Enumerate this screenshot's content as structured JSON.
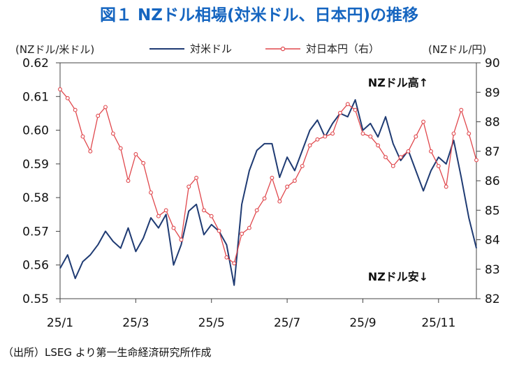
{
  "title": "図１ NZドル相場(対米ドル、日本円)の推移",
  "left_unit": "(NZドル/米ドル)",
  "right_unit": "(NZドル/円)",
  "legend": {
    "usd": "対米ドル",
    "jpy": "対日本円（右）"
  },
  "annotations": {
    "up": "NZドル高↑",
    "down": "NZドル安↓"
  },
  "source": "（出所）LSEG より第一生命経済研究所作成",
  "colors": {
    "usd": "#1f3b73",
    "jpy": "#e0474c",
    "title": "#1565c0"
  },
  "chart_data": {
    "type": "line",
    "title": "NZドル相場(対米ドル、日本円)の推移",
    "x_ticks": [
      "25/1",
      "25/3",
      "25/5",
      "25/7",
      "25/9",
      "25/11"
    ],
    "left_axis": {
      "label": "(NZドル/米ドル)",
      "min": 0.55,
      "max": 0.62,
      "ticks": [
        "0.62",
        "0.61",
        "0.60",
        "0.59",
        "0.58",
        "0.57",
        "0.56",
        "0.55"
      ]
    },
    "right_axis": {
      "label": "(NZドル/円)",
      "min": 82,
      "max": 90,
      "ticks": [
        "90",
        "89",
        "88",
        "87",
        "86",
        "85",
        "84",
        "83",
        "82"
      ]
    },
    "series": [
      {
        "name": "対米ドル",
        "axis": "left",
        "x": [
          0,
          0.2,
          0.4,
          0.6,
          0.8,
          1.0,
          1.2,
          1.4,
          1.6,
          1.8,
          2.0,
          2.2,
          2.4,
          2.6,
          2.8,
          3.0,
          3.2,
          3.4,
          3.6,
          3.8,
          4.0,
          4.2,
          4.4,
          4.6,
          4.8,
          5.0,
          5.2,
          5.4,
          5.6,
          5.8,
          6.0,
          6.2,
          6.4,
          6.6,
          6.8,
          7.0,
          7.2,
          7.4,
          7.6,
          7.8,
          8.0,
          8.2,
          8.4,
          8.6,
          8.8,
          9.0,
          9.2,
          9.4,
          9.6,
          9.8,
          10.0,
          10.2,
          10.4,
          10.6,
          10.8,
          11.0
        ],
        "values": [
          0.559,
          0.563,
          0.556,
          0.561,
          0.563,
          0.566,
          0.57,
          0.567,
          0.565,
          0.571,
          0.564,
          0.568,
          0.574,
          0.571,
          0.575,
          0.56,
          0.566,
          0.576,
          0.578,
          0.569,
          0.572,
          0.57,
          0.566,
          0.554,
          0.578,
          0.588,
          0.594,
          0.596,
          0.596,
          0.586,
          0.592,
          0.588,
          0.594,
          0.6,
          0.603,
          0.598,
          0.602,
          0.605,
          0.604,
          0.609,
          0.6,
          0.602,
          0.598,
          0.604,
          0.596,
          0.591,
          0.594,
          0.588,
          0.582,
          0.588,
          0.592,
          0.59,
          0.597,
          0.586,
          0.574,
          0.565
        ]
      },
      {
        "name": "対日本円（右）",
        "axis": "right",
        "x": [
          0,
          0.2,
          0.4,
          0.6,
          0.8,
          1.0,
          1.2,
          1.4,
          1.6,
          1.8,
          2.0,
          2.2,
          2.4,
          2.6,
          2.8,
          3.0,
          3.2,
          3.4,
          3.6,
          3.8,
          4.0,
          4.2,
          4.4,
          4.6,
          4.8,
          5.0,
          5.2,
          5.4,
          5.6,
          5.8,
          6.0,
          6.2,
          6.4,
          6.6,
          6.8,
          7.0,
          7.2,
          7.4,
          7.6,
          7.8,
          8.0,
          8.2,
          8.4,
          8.6,
          8.8,
          9.0,
          9.2,
          9.4,
          9.6,
          9.8,
          10.0,
          10.2,
          10.4,
          10.6,
          10.8,
          11.0
        ],
        "values": [
          89.1,
          88.8,
          88.4,
          87.5,
          87.0,
          88.2,
          88.5,
          87.6,
          87.1,
          86.0,
          86.9,
          86.6,
          85.6,
          84.8,
          85.0,
          84.4,
          84.0,
          85.8,
          86.1,
          85.0,
          84.8,
          84.3,
          83.4,
          83.2,
          84.2,
          84.4,
          85.0,
          85.4,
          86.1,
          85.3,
          85.8,
          86.0,
          86.5,
          87.2,
          87.4,
          87.5,
          87.6,
          88.3,
          88.6,
          88.4,
          87.6,
          87.5,
          87.2,
          86.8,
          86.5,
          86.8,
          87.0,
          87.5,
          88.0,
          87.0,
          86.5,
          85.8,
          87.6,
          88.4,
          87.6,
          86.7
        ]
      }
    ]
  }
}
